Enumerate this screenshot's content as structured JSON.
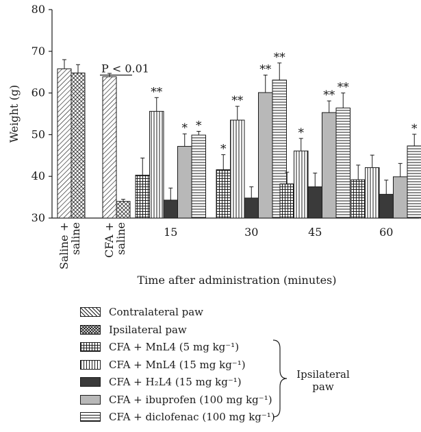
{
  "chart_data": {
    "type": "bar",
    "ylabel": "Weight (g)",
    "xlabel": "Time after administration (minutes)",
    "ylim": [
      30,
      80
    ],
    "yticks": [
      "30",
      "40",
      "50",
      "60",
      "70",
      "80"
    ],
    "control_groups": [
      {
        "label_lines": [
          "Saline +",
          "saline"
        ],
        "bars": [
          {
            "series": "Contralateral paw",
            "value": 65.8,
            "error": 2.2
          },
          {
            "series": "Ipsilateral paw",
            "value": 64.8,
            "error": 2.0
          }
        ]
      },
      {
        "label_lines": [
          "CFA +",
          "saline"
        ],
        "bars": [
          {
            "series": "Contralateral paw",
            "value": 63.9,
            "error": 0.8
          },
          {
            "series": "Ipsilateral paw",
            "value": 34.0,
            "error": 0.5
          }
        ]
      }
    ],
    "p_annotation": {
      "text": "P < 0.01"
    },
    "categories": [
      "15",
      "30",
      "45",
      "60"
    ],
    "series": [
      {
        "name": "CFA + MnL4 (5 mg kg⁻¹)",
        "pattern": "grid",
        "values": [
          40.3,
          41.6,
          38.2,
          39.2
        ],
        "errors": [
          4.1,
          3.6,
          2.8,
          3.5
        ],
        "sig": [
          "",
          "*",
          "",
          ""
        ]
      },
      {
        "name": "CFA + MnL4 (15 mg kg⁻¹)",
        "pattern": "vlines",
        "values": [
          55.6,
          53.5,
          46.1,
          42.1
        ],
        "errors": [
          3.3,
          3.3,
          3.0,
          3.0
        ],
        "sig": [
          "**",
          "**",
          "*",
          ""
        ]
      },
      {
        "name": "CFA + H₂L4 (15 mg kg⁻¹)",
        "pattern": "dark",
        "values": [
          34.3,
          34.8,
          37.5,
          35.7
        ],
        "errors": [
          2.9,
          2.7,
          3.3,
          3.4
        ],
        "sig": [
          "",
          "",
          "",
          ""
        ]
      },
      {
        "name": "CFA + ibuprofen (100 mg kg⁻¹)",
        "pattern": "gray",
        "values": [
          47.2,
          60.1,
          55.3,
          39.9
        ],
        "errors": [
          3.0,
          4.2,
          2.8,
          3.2
        ],
        "sig": [
          "*",
          "**",
          "**",
          ""
        ]
      },
      {
        "name": "CFA + diclofenac (100 mg kg⁻¹)",
        "pattern": "hlines",
        "values": [
          49.9,
          63.1,
          56.4,
          47.3
        ],
        "errors": [
          0.9,
          4.1,
          3.6,
          2.8
        ],
        "sig": [
          "*",
          "**",
          "**",
          "*"
        ]
      }
    ],
    "legend": [
      {
        "label": "Contralateral paw",
        "pattern": "diag"
      },
      {
        "label": "Ipsilateral paw",
        "pattern": "cross"
      },
      {
        "label": "CFA + MnL4 (5 mg kg⁻¹)",
        "pattern": "grid"
      },
      {
        "label": "CFA + MnL4 (15 mg kg⁻¹)",
        "pattern": "vlines"
      },
      {
        "label": "CFA + H₂L4 (15 mg kg⁻¹)",
        "pattern": "dark"
      },
      {
        "label": "CFA + ibuprofen (100 mg kg⁻¹)",
        "pattern": "gray"
      },
      {
        "label": "CFA + diclofenac (100 mg kg⁻¹)",
        "pattern": "hlines"
      }
    ],
    "brace_label_lines": [
      "Ipsilateral",
      "paw"
    ]
  }
}
